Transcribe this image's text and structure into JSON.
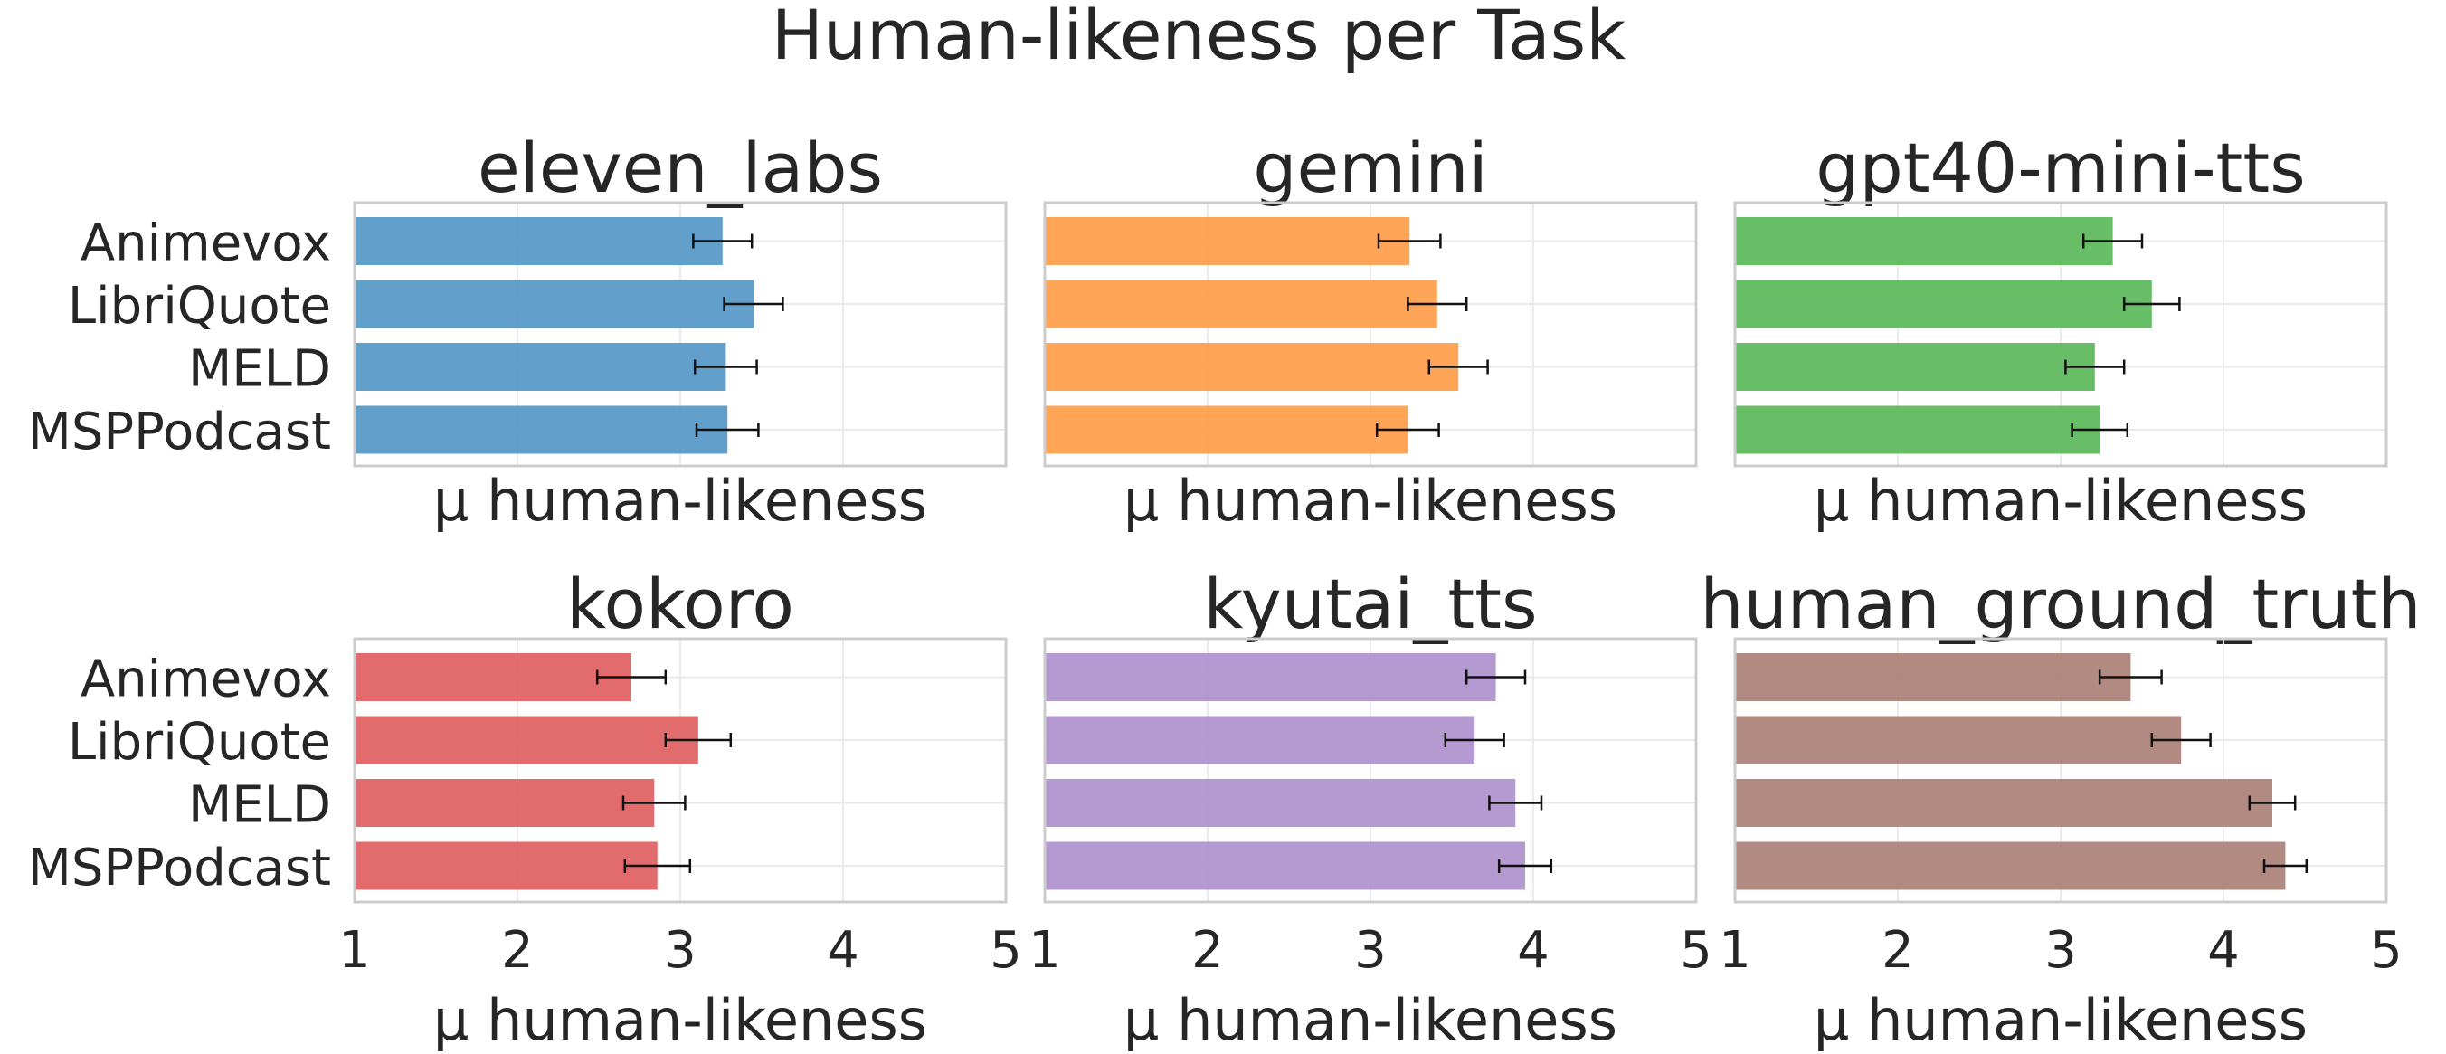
{
  "figure": {
    "title": "Human-likeness per Task"
  },
  "chart_data": [
    {
      "type": "bar",
      "orientation": "horizontal",
      "title": "eleven_labs",
      "categories": [
        "Animevox",
        "LibriQuote",
        "MELD",
        "MSPPodcast"
      ],
      "values": [
        3.26,
        3.45,
        3.28,
        3.29
      ],
      "errors": [
        0.18,
        0.18,
        0.19,
        0.19
      ],
      "xlabel": "μ human-likeness",
      "xlim": [
        1,
        5
      ],
      "xticks": [
        "1",
        "2",
        "3",
        "4",
        "5"
      ],
      "show_xtick_labels": false,
      "grid": true,
      "color": "#5a9bc8"
    },
    {
      "type": "bar",
      "orientation": "horizontal",
      "title": "gemini",
      "categories": [
        "Animevox",
        "LibriQuote",
        "MELD",
        "MSPPodcast"
      ],
      "values": [
        3.24,
        3.41,
        3.54,
        3.23
      ],
      "errors": [
        0.19,
        0.18,
        0.18,
        0.19
      ],
      "xlabel": "μ human-likeness",
      "xlim": [
        1,
        5
      ],
      "xticks": [
        "1",
        "2",
        "3",
        "4",
        "5"
      ],
      "show_xtick_labels": false,
      "grid": true,
      "color": "#ffa04f"
    },
    {
      "type": "bar",
      "orientation": "horizontal",
      "title": "gpt40-mini-tts",
      "categories": [
        "Animevox",
        "LibriQuote",
        "MELD",
        "MSPPodcast"
      ],
      "values": [
        3.32,
        3.56,
        3.21,
        3.24
      ],
      "errors": [
        0.18,
        0.17,
        0.18,
        0.17
      ],
      "xlabel": "μ human-likeness",
      "xlim": [
        1,
        5
      ],
      "xticks": [
        "1",
        "2",
        "3",
        "4",
        "5"
      ],
      "show_xtick_labels": false,
      "grid": true,
      "color": "#5fba5f"
    },
    {
      "type": "bar",
      "orientation": "horizontal",
      "title": "kokoro",
      "categories": [
        "Animevox",
        "LibriQuote",
        "MELD",
        "MSPPodcast"
      ],
      "values": [
        2.7,
        3.11,
        2.84,
        2.86
      ],
      "errors": [
        0.21,
        0.2,
        0.19,
        0.2
      ],
      "xlabel": "μ human-likeness",
      "xlim": [
        1,
        5
      ],
      "xticks": [
        "1",
        "2",
        "3",
        "4",
        "5"
      ],
      "show_xtick_labels": true,
      "grid": true,
      "color": "#e06465"
    },
    {
      "type": "bar",
      "orientation": "horizontal",
      "title": "kyutai_tts",
      "categories": [
        "Animevox",
        "LibriQuote",
        "MELD",
        "MSPPodcast"
      ],
      "values": [
        3.77,
        3.64,
        3.89,
        3.95
      ],
      "errors": [
        0.18,
        0.18,
        0.16,
        0.16
      ],
      "xlabel": "μ human-likeness",
      "xlim": [
        1,
        5
      ],
      "xticks": [
        "1",
        "2",
        "3",
        "4",
        "5"
      ],
      "show_xtick_labels": true,
      "grid": true,
      "color": "#b195d0"
    },
    {
      "type": "bar",
      "orientation": "horizontal",
      "title": "human_ground_truth",
      "categories": [
        "Animevox",
        "LibriQuote",
        "MELD",
        "MSPPodcast"
      ],
      "values": [
        3.43,
        3.74,
        4.3,
        4.38
      ],
      "errors": [
        0.19,
        0.18,
        0.14,
        0.13
      ],
      "xlabel": "μ human-likeness",
      "xlim": [
        1,
        5
      ],
      "xticks": [
        "1",
        "2",
        "3",
        "4",
        "5"
      ],
      "show_xtick_labels": true,
      "grid": true,
      "color": "#ad847b"
    }
  ]
}
